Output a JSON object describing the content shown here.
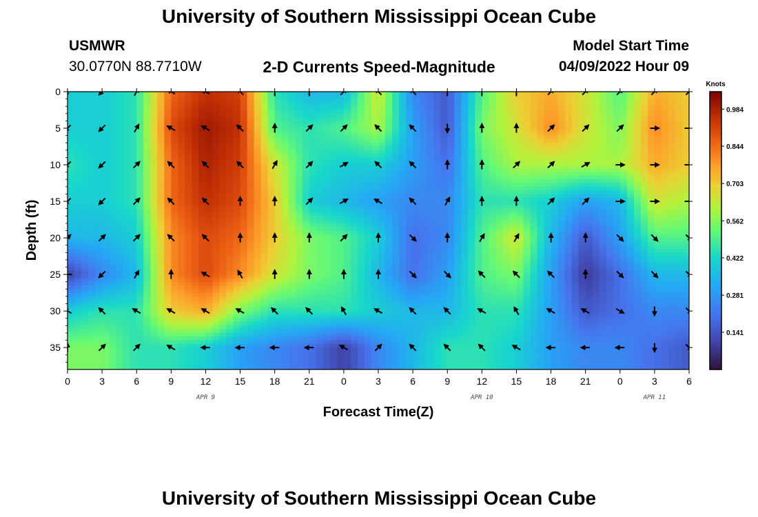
{
  "header": {
    "title": "University of Southern Mississippi Ocean Cube",
    "station": "USMWR",
    "coordinates": "30.0770N  88.7710W",
    "plot_title": "2-D Currents Speed-Magnitude",
    "model_start_label": "Model Start Time",
    "model_start_value": "04/09/2022 Hour 09"
  },
  "footer": {
    "title": "University of Southern Mississippi Ocean Cube"
  },
  "chart_data": {
    "type": "heatmap",
    "title": "2-D Currents Speed-Magnitude",
    "xlabel": "Forecast Time(Z)",
    "ylabel": "Depth (ft)",
    "x_hours_since_apr9_00": [
      0,
      3,
      6,
      9,
      12,
      15,
      18,
      21,
      24,
      27,
      30,
      33,
      36,
      39,
      42,
      45,
      48,
      51,
      54
    ],
    "x_tick_labels": [
      "0",
      "3",
      "6",
      "9",
      "12",
      "15",
      "18",
      "21",
      "0",
      "3",
      "6",
      "9",
      "12",
      "15",
      "18",
      "21",
      "0",
      "3",
      "6"
    ],
    "date_labels": [
      {
        "text": "APR 9",
        "x_hours": 12
      },
      {
        "text": "APR 10",
        "x_hours": 36
      },
      {
        "text": "APR 11",
        "x_hours": 51
      }
    ],
    "y_ticks": [
      0,
      5,
      10,
      15,
      20,
      25,
      30,
      35
    ],
    "ylim": [
      0,
      38
    ],
    "xlim": [
      0,
      54
    ],
    "depths": [
      0,
      5,
      10,
      15,
      20,
      25,
      30,
      35
    ],
    "speed_knots": [
      [
        0.4,
        0.4,
        0.45,
        0.85,
        0.95,
        0.92,
        0.45,
        0.35,
        0.35,
        0.65,
        0.25,
        0.15,
        0.5,
        0.7,
        0.75,
        0.65,
        0.5,
        0.75,
        0.7
      ],
      [
        0.4,
        0.4,
        0.45,
        0.9,
        1.0,
        0.95,
        0.5,
        0.45,
        0.5,
        0.6,
        0.3,
        0.15,
        0.55,
        0.65,
        0.8,
        0.65,
        0.55,
        0.8,
        0.7
      ],
      [
        0.45,
        0.4,
        0.45,
        0.85,
        0.98,
        0.92,
        0.65,
        0.45,
        0.4,
        0.4,
        0.3,
        0.2,
        0.5,
        0.6,
        0.6,
        0.6,
        0.6,
        0.75,
        0.7
      ],
      [
        0.4,
        0.4,
        0.45,
        0.85,
        0.95,
        0.9,
        0.7,
        0.4,
        0.35,
        0.3,
        0.25,
        0.25,
        0.45,
        0.45,
        0.4,
        0.3,
        0.35,
        0.65,
        0.6
      ],
      [
        0.35,
        0.35,
        0.4,
        0.8,
        0.9,
        0.85,
        0.7,
        0.55,
        0.5,
        0.4,
        0.2,
        0.25,
        0.5,
        0.65,
        0.35,
        0.15,
        0.3,
        0.5,
        0.5
      ],
      [
        0.1,
        0.25,
        0.35,
        0.8,
        0.9,
        0.8,
        0.65,
        0.55,
        0.5,
        0.35,
        0.2,
        0.3,
        0.5,
        0.55,
        0.3,
        0.08,
        0.2,
        0.35,
        0.35
      ],
      [
        0.4,
        0.45,
        0.45,
        0.7,
        0.75,
        0.55,
        0.45,
        0.45,
        0.45,
        0.4,
        0.35,
        0.35,
        0.45,
        0.45,
        0.3,
        0.15,
        0.2,
        0.25,
        0.25
      ],
      [
        0.55,
        0.55,
        0.45,
        0.45,
        0.4,
        0.3,
        0.25,
        0.2,
        0.1,
        0.25,
        0.35,
        0.45,
        0.45,
        0.4,
        0.3,
        0.25,
        0.25,
        0.2,
        0.15
      ]
    ],
    "vector_directions_deg": [
      [
        225,
        225,
        30,
        300,
        300,
        315,
        0,
        0,
        45,
        315,
        315,
        0,
        0,
        0,
        45,
        45,
        45,
        45,
        45
      ],
      [
        225,
        225,
        30,
        300,
        300,
        315,
        0,
        45,
        45,
        315,
        315,
        180,
        0,
        0,
        45,
        45,
        45,
        90,
        90
      ],
      [
        225,
        225,
        45,
        315,
        315,
        315,
        30,
        45,
        60,
        315,
        315,
        0,
        0,
        45,
        45,
        60,
        90,
        90,
        90
      ],
      [
        225,
        225,
        45,
        315,
        315,
        0,
        0,
        45,
        60,
        300,
        315,
        30,
        0,
        0,
        45,
        45,
        90,
        90,
        90
      ],
      [
        45,
        45,
        45,
        315,
        315,
        0,
        0,
        0,
        45,
        0,
        135,
        0,
        30,
        30,
        0,
        0,
        135,
        135,
        135
      ],
      [
        270,
        225,
        30,
        0,
        300,
        330,
        0,
        0,
        0,
        0,
        135,
        135,
        315,
        315,
        315,
        0,
        135,
        135,
        135
      ],
      [
        300,
        315,
        300,
        300,
        300,
        300,
        315,
        315,
        330,
        300,
        315,
        315,
        300,
        330,
        300,
        300,
        120,
        180,
        135
      ],
      [
        0,
        45,
        45,
        300,
        270,
        270,
        270,
        270,
        300,
        45,
        315,
        315,
        315,
        300,
        270,
        270,
        270,
        180,
        135
      ]
    ],
    "colorbar": {
      "title": "Knots",
      "min": 0.0,
      "max": 1.05,
      "tick_values": [
        0.984,
        0.844,
        0.703,
        0.562,
        0.422,
        0.281,
        0.141
      ],
      "tick_labels": [
        "0.984",
        "0.844",
        "0.703",
        "0.562",
        "0.422",
        "0.281",
        "0.141"
      ]
    }
  }
}
